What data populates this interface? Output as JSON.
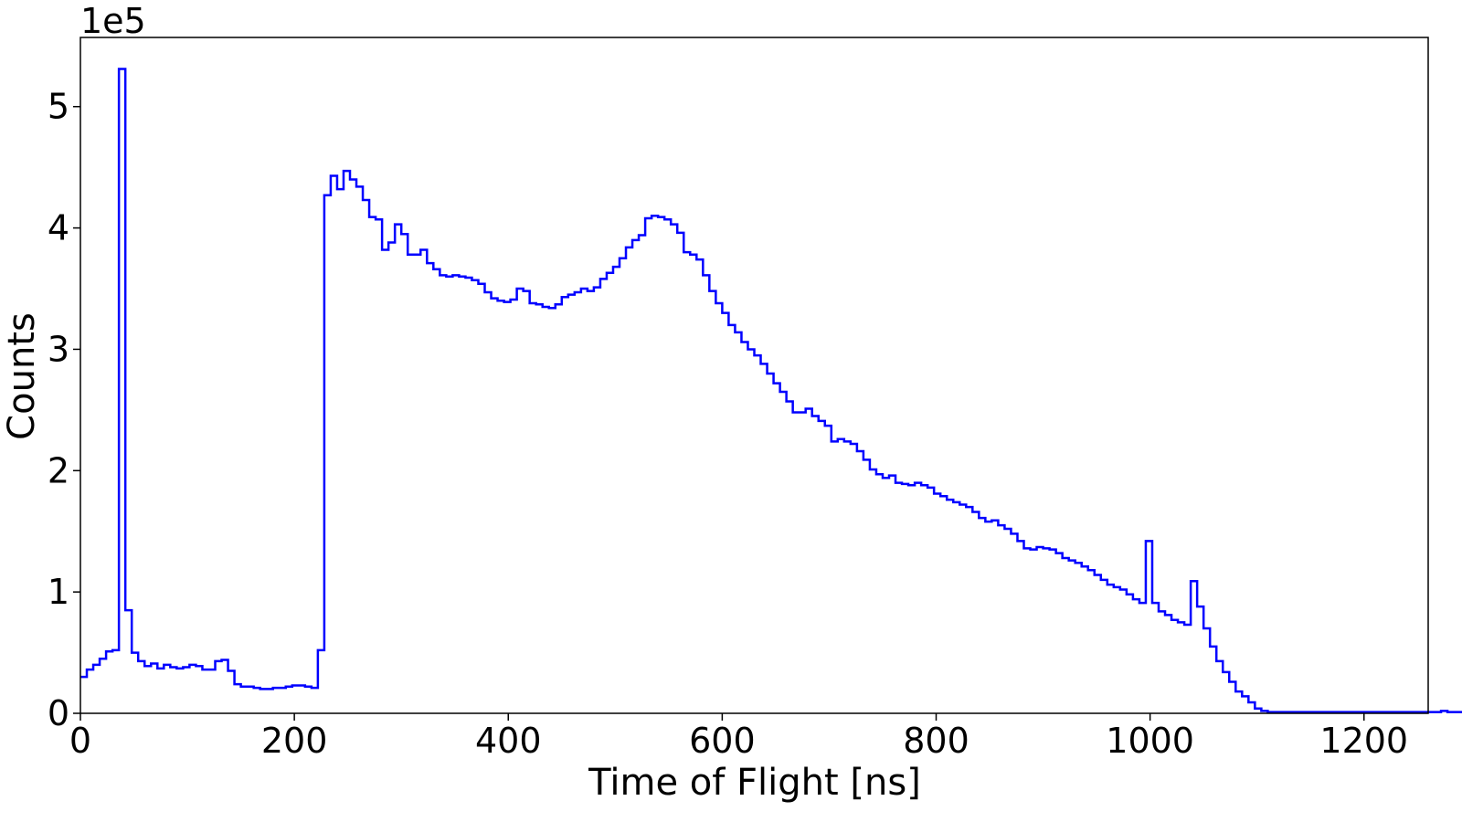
{
  "chart_data": {
    "type": "line",
    "style": "step-histogram",
    "xlabel": "Time of Flight [ns]",
    "ylabel": "Counts",
    "y_offset_label": "1e5",
    "y_scale_factor": 100000,
    "xlim": [
      0,
      1260
    ],
    "ylim": [
      0,
      5.57
    ],
    "xticks": [
      0,
      200,
      400,
      600,
      800,
      1000,
      1200
    ],
    "yticks": [
      0,
      1,
      2,
      3,
      4,
      5
    ],
    "grid": false,
    "legend": "none",
    "series_color": "#0000ff",
    "bin_width": 6,
    "x_start": 0,
    "values": [
      0.3,
      0.36,
      0.4,
      0.45,
      0.51,
      0.52,
      5.31,
      0.85,
      0.5,
      0.43,
      0.39,
      0.41,
      0.37,
      0.4,
      0.38,
      0.37,
      0.38,
      0.4,
      0.39,
      0.36,
      0.36,
      0.43,
      0.44,
      0.35,
      0.24,
      0.22,
      0.22,
      0.21,
      0.2,
      0.2,
      0.21,
      0.21,
      0.22,
      0.23,
      0.23,
      0.22,
      0.21,
      0.52,
      4.27,
      4.43,
      4.32,
      4.47,
      4.4,
      4.34,
      4.23,
      4.09,
      4.07,
      3.82,
      3.88,
      4.03,
      3.95,
      3.78,
      3.78,
      3.82,
      3.71,
      3.66,
      3.61,
      3.6,
      3.61,
      3.6,
      3.59,
      3.57,
      3.54,
      3.47,
      3.42,
      3.4,
      3.39,
      3.41,
      3.5,
      3.48,
      3.38,
      3.37,
      3.35,
      3.34,
      3.37,
      3.43,
      3.45,
      3.47,
      3.5,
      3.48,
      3.51,
      3.58,
      3.63,
      3.68,
      3.75,
      3.84,
      3.9,
      3.94,
      4.08,
      4.1,
      4.09,
      4.07,
      4.03,
      3.96,
      3.8,
      3.78,
      3.74,
      3.61,
      3.48,
      3.38,
      3.3,
      3.2,
      3.14,
      3.06,
      3.0,
      2.95,
      2.88,
      2.8,
      2.72,
      2.65,
      2.57,
      2.48,
      2.48,
      2.51,
      2.45,
      2.41,
      2.37,
      2.24,
      2.26,
      2.24,
      2.22,
      2.16,
      2.09,
      2.01,
      1.97,
      1.94,
      1.96,
      1.9,
      1.89,
      1.88,
      1.9,
      1.88,
      1.86,
      1.81,
      1.79,
      1.76,
      1.74,
      1.72,
      1.7,
      1.66,
      1.61,
      1.58,
      1.59,
      1.55,
      1.52,
      1.48,
      1.42,
      1.36,
      1.35,
      1.37,
      1.36,
      1.35,
      1.32,
      1.28,
      1.26,
      1.24,
      1.21,
      1.18,
      1.14,
      1.1,
      1.06,
      1.04,
      1.02,
      0.98,
      0.94,
      0.91,
      1.42,
      0.91,
      0.84,
      0.81,
      0.77,
      0.75,
      0.73,
      1.09,
      0.88,
      0.7,
      0.55,
      0.43,
      0.34,
      0.26,
      0.18,
      0.14,
      0.09,
      0.04,
      0.02,
      0.01,
      0.01,
      0.01,
      0.01,
      0.01,
      0.01,
      0.01,
      0.01,
      0.01,
      0.01,
      0.01,
      0.01,
      0.01,
      0.01,
      0.01,
      0.01,
      0.01,
      0.01,
      0.01,
      0.01,
      0.01,
      0.01,
      0.01,
      0.01,
      0.01,
      0.01,
      0.01,
      0.02,
      0.01,
      0.01,
      0.01
    ]
  }
}
